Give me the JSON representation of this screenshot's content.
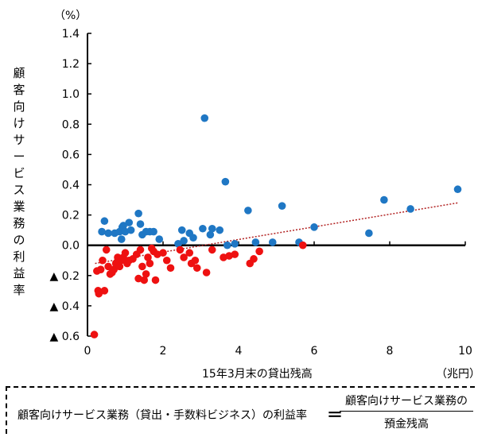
{
  "chart_data": {
    "type": "scatter",
    "title": "",
    "xlabel": "15年3月末の貸出残高",
    "x_unit": "（兆円）",
    "ylabel": "顧客向けサービス業務の利益率",
    "y_unit": "（%）",
    "xlim": [
      0,
      10
    ],
    "ylim": [
      -0.6,
      1.4
    ],
    "x_ticks": [
      0,
      2,
      4,
      6,
      8,
      10
    ],
    "x_tick_labels": [
      "0",
      "2",
      "4",
      "6",
      "8",
      "10"
    ],
    "y_ticks": [
      1.4,
      1.2,
      1.0,
      0.8,
      0.6,
      0.4,
      0.2,
      0.0,
      -0.2,
      -0.4,
      -0.6
    ],
    "y_tick_labels": [
      "1.4",
      "1.2",
      "1.0",
      "0.8",
      "0.6",
      "0.4",
      "0.2",
      "0.0",
      "▲ 0.2",
      "▲ 0.4",
      "▲ 0.6"
    ],
    "grid": false,
    "colors": {
      "positive": "#1f77c4",
      "negative": "#ee1111",
      "trend": "#b22222",
      "axis": "#000000"
    },
    "series": [
      {
        "color_key": "positive",
        "x": [
          0.45,
          0.55,
          0.38,
          0.72,
          0.85,
          0.9,
          0.92,
          0.95,
          1.0,
          1.1,
          1.15,
          1.35,
          1.4,
          1.45,
          1.55,
          1.65,
          1.75,
          1.9,
          2.4,
          2.5,
          2.55,
          2.7,
          2.8,
          3.05,
          3.1,
          3.25,
          3.3,
          3.5,
          3.65,
          3.7,
          3.9,
          4.25,
          4.45,
          4.9,
          5.15,
          5.6,
          6.0,
          7.45,
          7.85,
          8.55,
          9.8
        ],
        "y": [
          0.16,
          0.08,
          0.09,
          0.08,
          0.09,
          0.04,
          0.12,
          0.13,
          0.09,
          0.15,
          0.1,
          0.21,
          0.14,
          0.07,
          0.09,
          0.09,
          0.09,
          0.04,
          0.01,
          0.1,
          0.03,
          0.08,
          0.05,
          0.11,
          0.84,
          0.07,
          0.11,
          0.1,
          0.42,
          0.0,
          0.01,
          0.23,
          0.02,
          0.02,
          0.26,
          0.02,
          0.12,
          0.08,
          0.3,
          0.24,
          0.37
        ]
      },
      {
        "color_key": "negative",
        "x": [
          0.18,
          0.25,
          0.28,
          0.3,
          0.35,
          0.4,
          0.45,
          0.5,
          0.55,
          0.6,
          0.65,
          0.7,
          0.75,
          0.8,
          0.85,
          0.9,
          0.95,
          1.0,
          1.05,
          1.1,
          1.2,
          1.3,
          1.35,
          1.4,
          1.45,
          1.5,
          1.55,
          1.6,
          1.65,
          1.7,
          1.75,
          1.8,
          1.85,
          2.0,
          2.1,
          2.2,
          2.45,
          2.55,
          2.7,
          2.75,
          2.85,
          2.9,
          3.15,
          3.3,
          3.6,
          3.75,
          3.9,
          4.3,
          4.4,
          4.55,
          5.7
        ],
        "y": [
          -0.59,
          -0.17,
          -0.3,
          -0.32,
          -0.16,
          -0.1,
          -0.3,
          -0.03,
          -0.14,
          -0.19,
          -0.18,
          -0.16,
          -0.12,
          -0.08,
          -0.14,
          -0.1,
          -0.08,
          -0.05,
          -0.12,
          -0.1,
          -0.09,
          -0.06,
          -0.22,
          -0.03,
          -0.14,
          -0.23,
          -0.19,
          -0.08,
          -0.12,
          -0.02,
          -0.04,
          -0.23,
          -0.06,
          -0.05,
          -0.1,
          -0.15,
          -0.03,
          -0.08,
          -0.05,
          -0.12,
          -0.1,
          -0.15,
          -0.18,
          -0.03,
          -0.08,
          -0.07,
          -0.06,
          -0.12,
          -0.09,
          -0.04,
          0.0
        ]
      }
    ],
    "trendline": {
      "style": "dotted",
      "x": [
        0.2,
        9.8
      ],
      "y": [
        -0.12,
        0.28
      ]
    }
  },
  "formula": {
    "lhs": "顧客向けサービス業務（貸出・手数料ビジネス）の利益率",
    "equals": "＝",
    "numerator": "顧客向けサービス業務の",
    "denominator": "預金残高"
  }
}
